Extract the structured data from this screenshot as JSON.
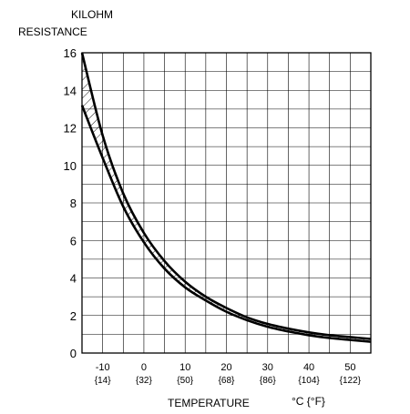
{
  "chart_data": {
    "type": "line",
    "title": "",
    "ylabel_line1": "KILOHM",
    "ylabel_line2": "RESISTANCE",
    "xlabel": "TEMPERATURE",
    "xunit": "°C {°F}",
    "xlim": [
      -15,
      55
    ],
    "ylim": [
      0,
      16
    ],
    "grid": true,
    "x_ticks": [
      {
        "c": "-10",
        "f": "{14}",
        "x": -10
      },
      {
        "c": "0",
        "f": "{32}",
        "x": 0
      },
      {
        "c": "10",
        "f": "{50}",
        "x": 10
      },
      {
        "c": "20",
        "f": "{68}",
        "x": 20
      },
      {
        "c": "30",
        "f": "{86}",
        "x": 30
      },
      {
        "c": "40",
        "f": "{104}",
        "x": 40
      },
      {
        "c": "50",
        "f": "{122}",
        "x": 50
      }
    ],
    "y_ticks": [
      0,
      2,
      4,
      6,
      8,
      10,
      12,
      14,
      16
    ],
    "series": [
      {
        "x": [
          -15,
          -10,
          -5,
          0,
          5,
          10,
          15,
          20,
          25,
          30,
          35,
          40,
          45,
          50,
          55
        ],
        "values": [
          16.0,
          11.6,
          8.5,
          6.4,
          4.9,
          3.8,
          3.0,
          2.4,
          1.9,
          1.55,
          1.3,
          1.1,
          0.95,
          0.85,
          0.75
        ]
      },
      {
        "x": [
          -15,
          -10,
          -5,
          0,
          5,
          10,
          15,
          20,
          25,
          30,
          35,
          40,
          45,
          50,
          55
        ],
        "values": [
          13.2,
          10.4,
          7.8,
          5.9,
          4.5,
          3.5,
          2.8,
          2.2,
          1.75,
          1.4,
          1.15,
          0.95,
          0.8,
          0.7,
          0.6
        ]
      }
    ]
  }
}
